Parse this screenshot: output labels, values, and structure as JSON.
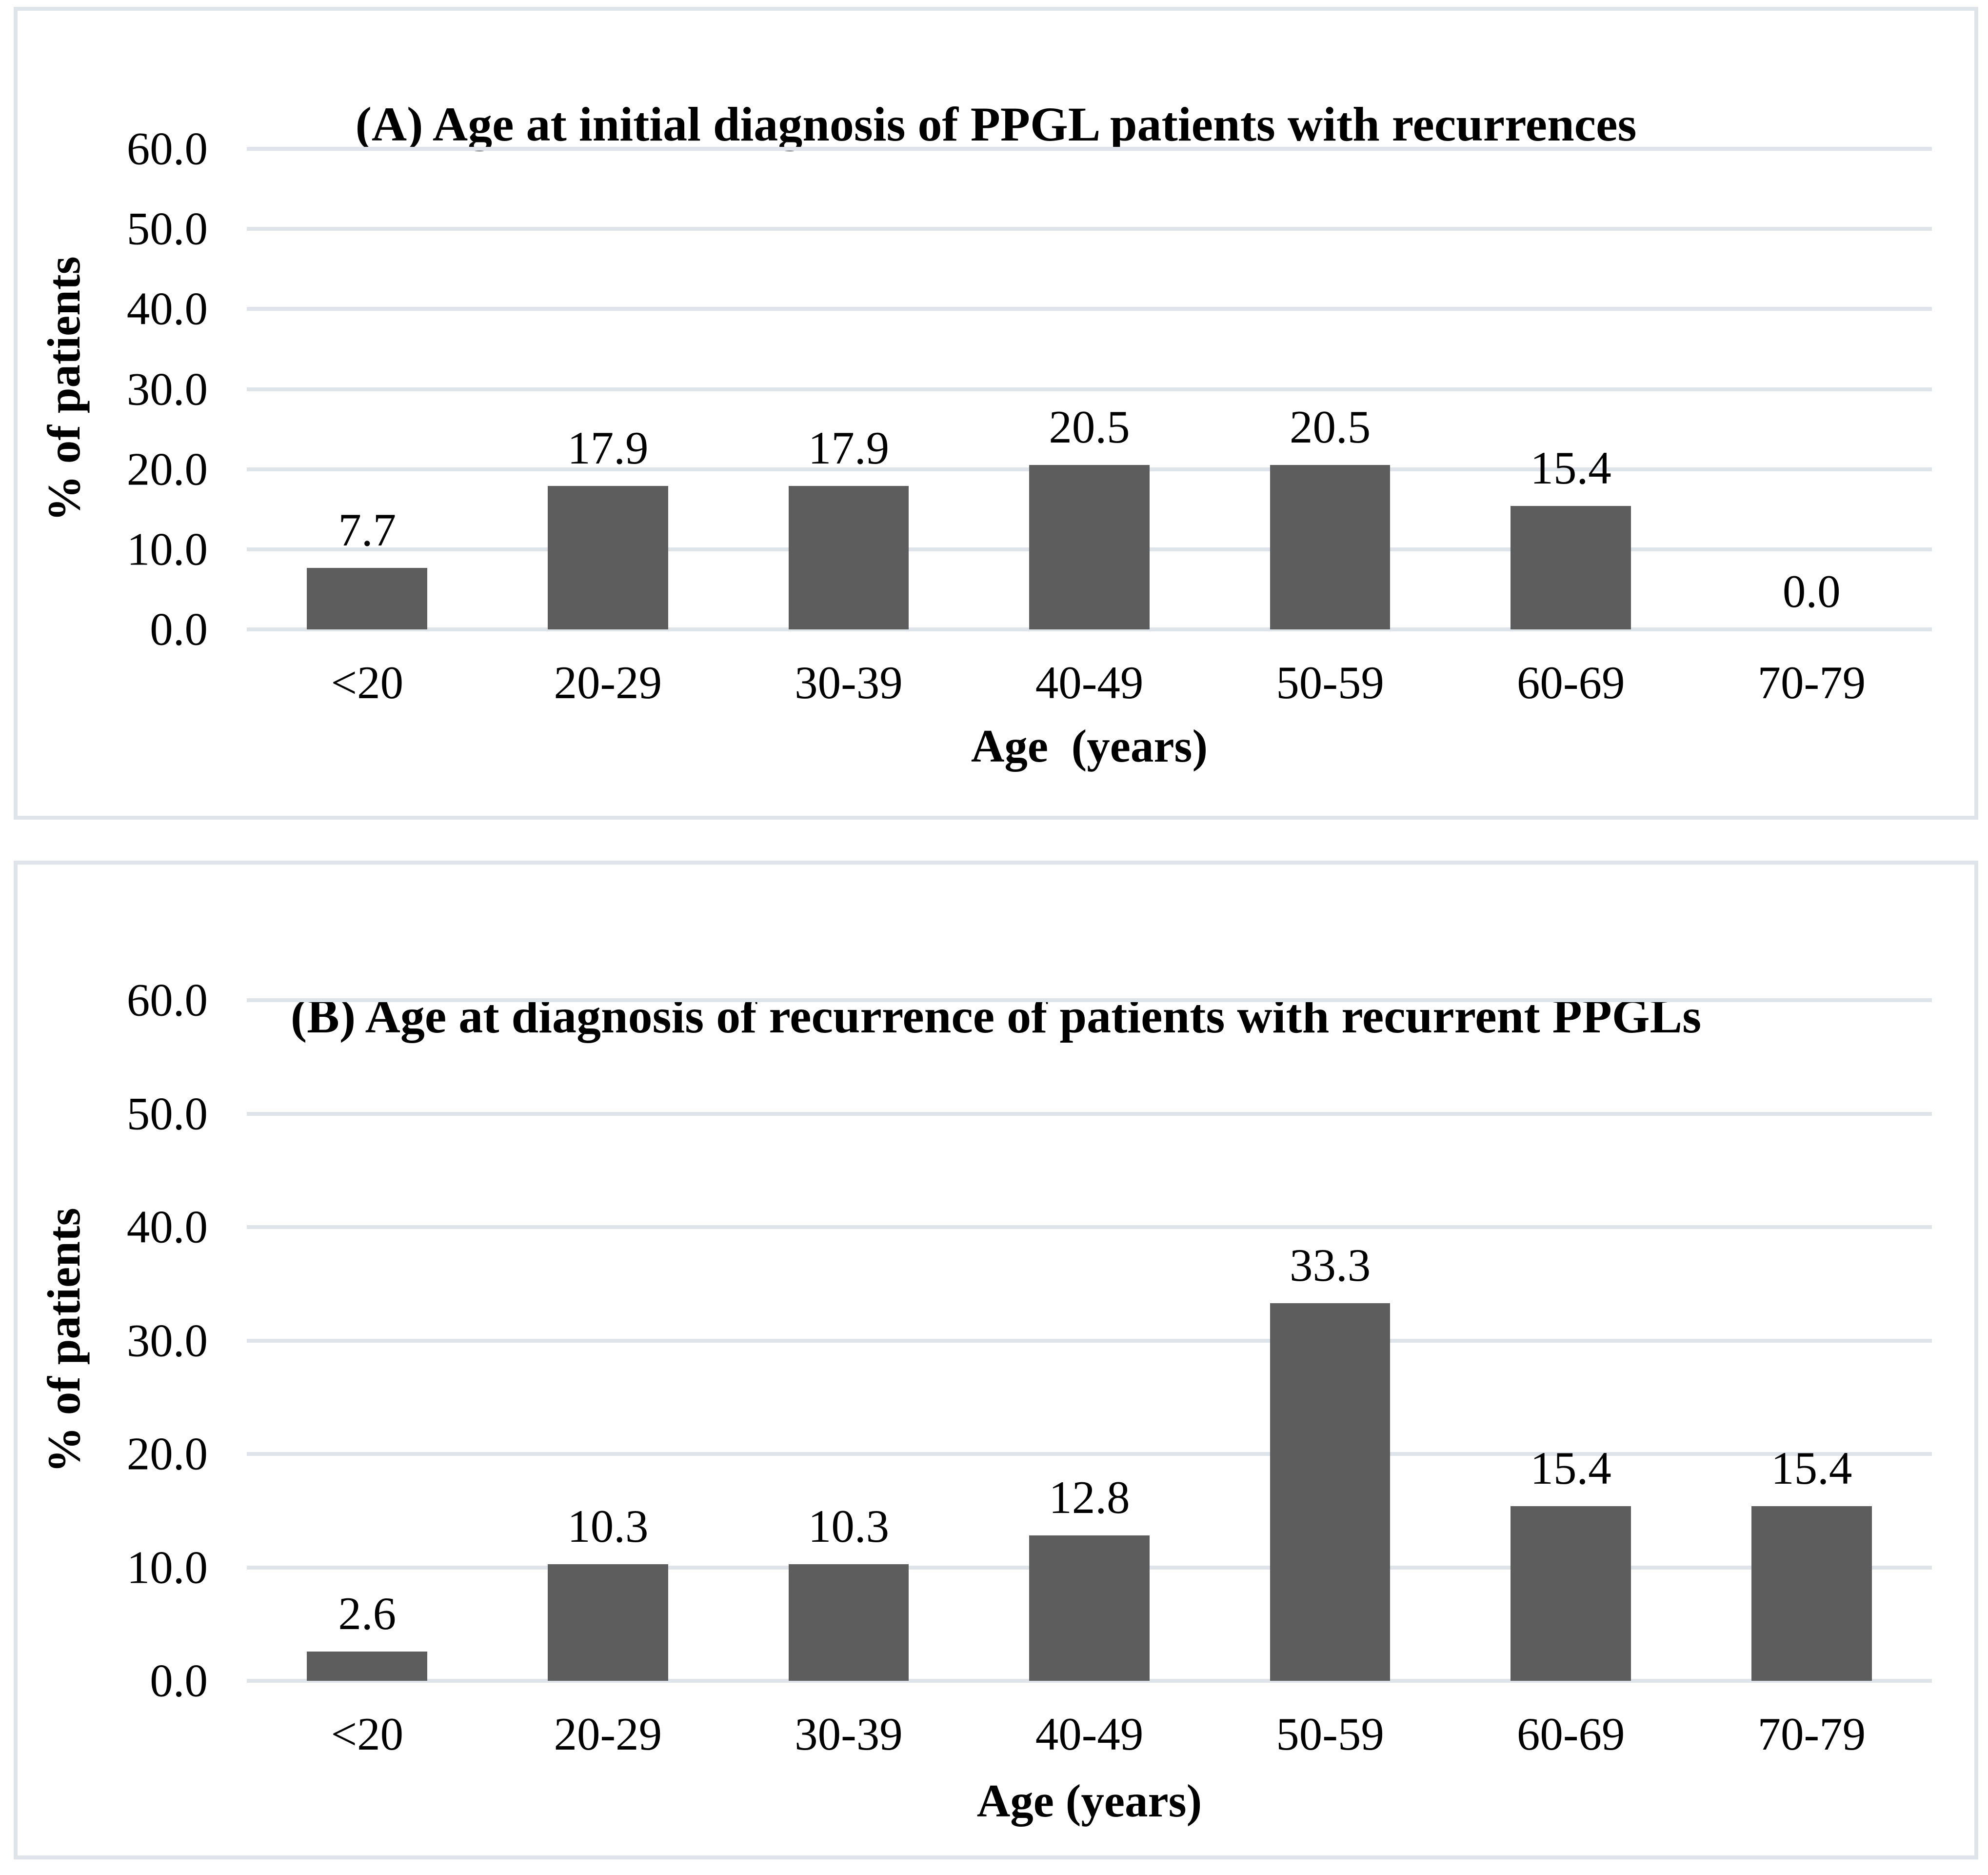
{
  "figure": {
    "background": "#ffffff",
    "panel_border_color": "#dfe4ea",
    "gridline_color": "#dfe4ea",
    "bar_color": "#5d5d5d",
    "text_color": "#000000"
  },
  "chart_data": [
    {
      "type": "bar",
      "panel_label": "A",
      "title": "(A) Age at initial diagnosis of PPGL patients with recurrences",
      "xlabel": "Age  (years)",
      "ylabel": "% of patients",
      "categories": [
        "<20",
        "20-29",
        "30-39",
        "40-49",
        "50-59",
        "60-69",
        "70-79"
      ],
      "values": [
        7.7,
        17.9,
        17.9,
        20.5,
        20.5,
        15.4,
        0.0
      ],
      "value_labels": [
        "7.7",
        "17.9",
        "17.9",
        "20.5",
        "20.5",
        "15.4",
        "0.0"
      ],
      "ylim": [
        0,
        60
      ],
      "ytick_step": 10,
      "ytick_labels": [
        "0.0",
        "10.0",
        "20.0",
        "30.0",
        "40.0",
        "50.0",
        "60.0"
      ],
      "grid": true,
      "legend_position": "none"
    },
    {
      "type": "bar",
      "panel_label": "B",
      "title": "(B) Age at diagnosis of recurrence of patients with recurrent PPGLs",
      "xlabel": "Age (years)",
      "ylabel": "% of patients",
      "categories": [
        "<20",
        "20-29",
        "30-39",
        "40-49",
        "50-59",
        "60-69",
        "70-79"
      ],
      "values": [
        2.6,
        10.3,
        10.3,
        12.8,
        33.3,
        15.4,
        15.4
      ],
      "value_labels": [
        "2.6",
        "10.3",
        "10.3",
        "12.8",
        "33.3",
        "15.4",
        "15.4"
      ],
      "ylim": [
        0,
        60
      ],
      "ytick_step": 10,
      "ytick_labels": [
        "0.0",
        "10.0",
        "20.0",
        "30.0",
        "40.0",
        "50.0",
        "60.0"
      ],
      "grid": true,
      "legend_position": "none"
    }
  ]
}
